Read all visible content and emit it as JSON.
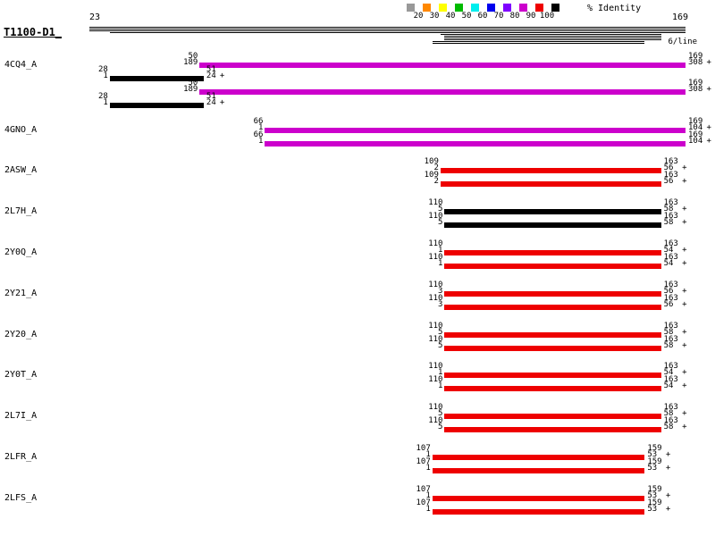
{
  "chart_data": {
    "type": "bar",
    "orientation": "horizontal-span",
    "title": "T1100-D1_",
    "axis": {
      "start": 23,
      "end": 169,
      "start_label": "23",
      "end_label": "169",
      "per_line": "6/line"
    },
    "legend": {
      "label": "% Identity",
      "position": "top-right",
      "colors": [
        "#999999",
        "#FF8800",
        "#FFFF00",
        "#00BB00",
        "#00EEEE",
        "#0000EE",
        "#7F00FF",
        "#CC00CC",
        "#EE0000",
        "#000000"
      ],
      "ticks": [
        "20",
        "30",
        "40",
        "50",
        "60",
        "70",
        "80",
        "90",
        "100"
      ]
    },
    "coverage_lines": [
      {
        "from": 23,
        "to": 169
      },
      {
        "from": 23,
        "to": 169
      },
      {
        "from": 23,
        "to": 169
      },
      {
        "from": 28,
        "to": 169
      },
      {
        "from": 109,
        "to": 163
      },
      {
        "from": 110,
        "to": 163
      },
      {
        "from": 110,
        "to": 163
      },
      {
        "from": 110,
        "to": 163
      },
      {
        "from": 107,
        "to": 159
      },
      {
        "from": 107,
        "to": 159
      }
    ],
    "hits": [
      {
        "name": "4CQ4_A",
        "bars": [
          {
            "q_start": 50,
            "q_end": 169,
            "h_start": 189,
            "h_end": 308,
            "strand": "+",
            "color": "#CC00CC"
          },
          {
            "q_start": 28,
            "q_end": 51,
            "h_start": 1,
            "h_end": 24,
            "strand": "+",
            "color": "#000000"
          },
          {
            "q_start": 50,
            "q_end": 169,
            "h_start": 189,
            "h_end": 308,
            "strand": "+",
            "color": "#CC00CC"
          },
          {
            "q_start": 28,
            "q_end": 51,
            "h_start": 1,
            "h_end": 24,
            "strand": "+",
            "color": "#000000"
          }
        ]
      },
      {
        "name": "4GNO_A",
        "bars": [
          {
            "q_start": 66,
            "q_end": 169,
            "h_start": 1,
            "h_end": 104,
            "strand": "+",
            "color": "#CC00CC"
          },
          {
            "q_start": 66,
            "q_end": 169,
            "h_start": 1,
            "h_end": 104,
            "strand": "+",
            "color": "#CC00CC"
          }
        ]
      },
      {
        "name": "2ASW_A",
        "bars": [
          {
            "q_start": 109,
            "q_end": 163,
            "h_start": 2,
            "h_end": 56,
            "strand": "+",
            "color": "#EE0000"
          },
          {
            "q_start": 109,
            "q_end": 163,
            "h_start": 2,
            "h_end": 56,
            "strand": "+",
            "color": "#EE0000"
          }
        ]
      },
      {
        "name": "2L7H_A",
        "bars": [
          {
            "q_start": 110,
            "q_end": 163,
            "h_start": 5,
            "h_end": 58,
            "strand": "+",
            "color": "#000000"
          },
          {
            "q_start": 110,
            "q_end": 163,
            "h_start": 5,
            "h_end": 58,
            "strand": "+",
            "color": "#000000"
          }
        ]
      },
      {
        "name": "2Y0Q_A",
        "bars": [
          {
            "q_start": 110,
            "q_end": 163,
            "h_start": 1,
            "h_end": 54,
            "strand": "+",
            "color": "#EE0000"
          },
          {
            "q_start": 110,
            "q_end": 163,
            "h_start": 1,
            "h_end": 54,
            "strand": "+",
            "color": "#EE0000"
          }
        ]
      },
      {
        "name": "2Y21_A",
        "bars": [
          {
            "q_start": 110,
            "q_end": 163,
            "h_start": 3,
            "h_end": 56,
            "strand": "+",
            "color": "#EE0000"
          },
          {
            "q_start": 110,
            "q_end": 163,
            "h_start": 3,
            "h_end": 56,
            "strand": "+",
            "color": "#EE0000"
          }
        ]
      },
      {
        "name": "2Y20_A",
        "bars": [
          {
            "q_start": 110,
            "q_end": 163,
            "h_start": 5,
            "h_end": 58,
            "strand": "+",
            "color": "#EE0000"
          },
          {
            "q_start": 110,
            "q_end": 163,
            "h_start": 5,
            "h_end": 58,
            "strand": "+",
            "color": "#EE0000"
          }
        ]
      },
      {
        "name": "2Y0T_A",
        "bars": [
          {
            "q_start": 110,
            "q_end": 163,
            "h_start": 1,
            "h_end": 54,
            "strand": "+",
            "color": "#EE0000"
          },
          {
            "q_start": 110,
            "q_end": 163,
            "h_start": 1,
            "h_end": 54,
            "strand": "+",
            "color": "#EE0000"
          }
        ]
      },
      {
        "name": "2L7I_A",
        "bars": [
          {
            "q_start": 110,
            "q_end": 163,
            "h_start": 5,
            "h_end": 58,
            "strand": "+",
            "color": "#EE0000"
          },
          {
            "q_start": 110,
            "q_end": 163,
            "h_start": 5,
            "h_end": 58,
            "strand": "+",
            "color": "#EE0000"
          }
        ]
      },
      {
        "name": "2LFR_A",
        "bars": [
          {
            "q_start": 107,
            "q_end": 159,
            "h_start": 1,
            "h_end": 53,
            "strand": "+",
            "color": "#EE0000"
          },
          {
            "q_start": 107,
            "q_end": 159,
            "h_start": 1,
            "h_end": 53,
            "strand": "+",
            "color": "#EE0000"
          }
        ]
      },
      {
        "name": "2LFS_A",
        "bars": [
          {
            "q_start": 107,
            "q_end": 159,
            "h_start": 1,
            "h_end": 53,
            "strand": "+",
            "color": "#EE0000"
          },
          {
            "q_start": 107,
            "q_end": 159,
            "h_start": 1,
            "h_end": 53,
            "strand": "+",
            "color": "#EE0000"
          }
        ]
      }
    ]
  }
}
